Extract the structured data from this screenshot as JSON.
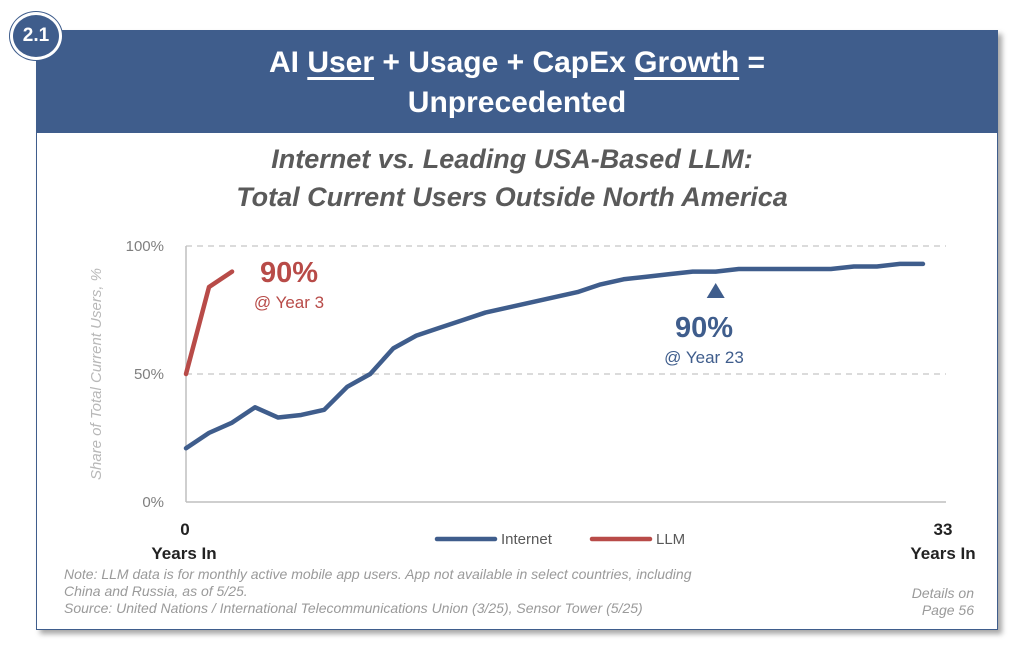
{
  "badge": "2.1",
  "title": {
    "part1": "AI ",
    "user": "User",
    "part2": " + Usage + CapEx ",
    "growth": "Growth",
    "part3": " =",
    "line2": "Unprecedented"
  },
  "colors": {
    "internet": "#3f5d8c",
    "llm": "#b84b48",
    "header": "#3f5d8c"
  },
  "chart_data": {
    "type": "line",
    "title_line1": "Internet vs. Leading USA-Based LLM:",
    "title_line2": "Total Current Users Outside North America",
    "ylabel": "Share of Total Current Users, %",
    "yticks": [
      "100%",
      "50%",
      "0%"
    ],
    "ylim": [
      0,
      100
    ],
    "xlim": [
      0,
      33
    ],
    "x_start_label": "0",
    "x_end_label": "33",
    "x_axis_caption": "Years In",
    "series": [
      {
        "name": "Internet",
        "x": [
          0,
          1,
          2,
          3,
          4,
          5,
          6,
          7,
          8,
          9,
          10,
          11,
          12,
          13,
          14,
          15,
          16,
          17,
          18,
          19,
          20,
          21,
          22,
          23,
          24,
          25,
          26,
          27,
          28,
          29,
          30,
          31,
          32
        ],
        "values": [
          21,
          27,
          31,
          37,
          33,
          34,
          36,
          45,
          50,
          60,
          65,
          68,
          71,
          74,
          76,
          78,
          80,
          82,
          85,
          87,
          88,
          89,
          90,
          90,
          91,
          91,
          91,
          91,
          91,
          92,
          92,
          93,
          93
        ]
      },
      {
        "name": "LLM",
        "x": [
          0,
          1,
          2
        ],
        "values": [
          50,
          84,
          90
        ]
      }
    ],
    "annotations": [
      {
        "series": "LLM",
        "value": "90%",
        "caption": "@ Year 3"
      },
      {
        "series": "Internet",
        "value": "90%",
        "caption": "@ Year 23",
        "marker_year": 23
      }
    ],
    "legend": [
      "Internet",
      "LLM"
    ]
  },
  "footer": {
    "note1": "Note: LLM data is for monthly active mobile app users. App not available in select countries, including",
    "note2": "China and Russia, as of 5/25.",
    "source": "Source: United Nations / International Telecommunications Union (3/25), Sensor Tower (5/25)",
    "details1": "Details on",
    "details2": "Page 56"
  }
}
